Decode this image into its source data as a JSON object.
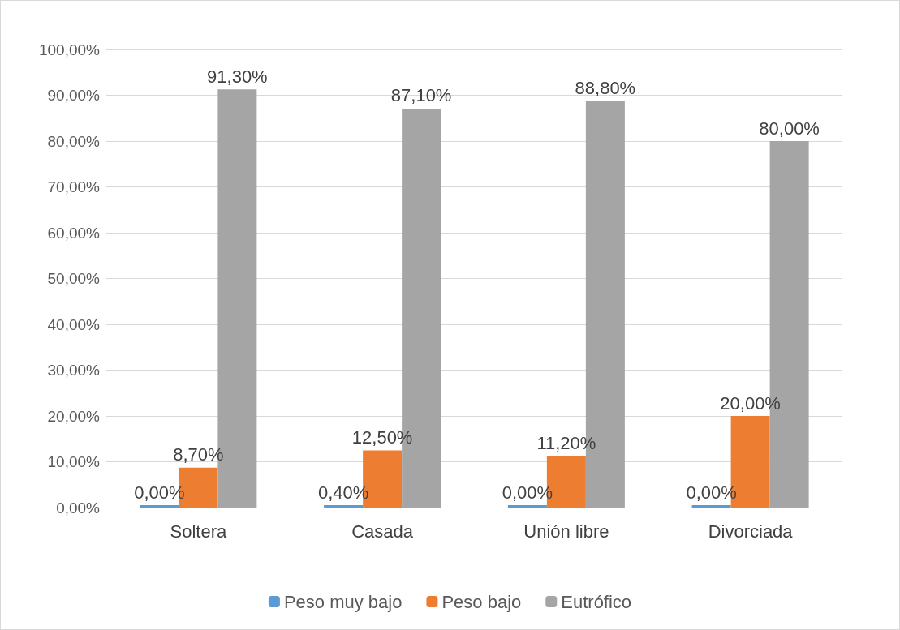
{
  "chart_data": {
    "type": "bar",
    "categories": [
      "Soltera",
      "Casada",
      "Unión libre",
      "Divorciada"
    ],
    "series": [
      {
        "name": "Peso muy bajo",
        "color": "#5b9bd5",
        "values": [
          0,
          0.4,
          0,
          0
        ],
        "value_labels": [
          "0,00%",
          "0,40%",
          "0,00%",
          "0,00%"
        ]
      },
      {
        "name": "Peso bajo",
        "color": "#ed7d31",
        "values": [
          8.7,
          12.5,
          11.2,
          20
        ],
        "value_labels": [
          "8,70%",
          "12,50%",
          "11,20%",
          "20,00%"
        ]
      },
      {
        "name": "Eutrófico",
        "color": "#a5a5a5",
        "values": [
          91.3,
          87.1,
          88.8,
          80
        ],
        "value_labels": [
          "91,30%",
          "87,10%",
          "88,80%",
          "80,00%"
        ]
      }
    ],
    "ylim": [
      0,
      100
    ],
    "yticks": [
      {
        "value": 0,
        "label": "0,00%"
      },
      {
        "value": 10,
        "label": "10,00%"
      },
      {
        "value": 20,
        "label": "20,00%"
      },
      {
        "value": 30,
        "label": "30,00%"
      },
      {
        "value": 40,
        "label": "40,00%"
      },
      {
        "value": 50,
        "label": "50,00%"
      },
      {
        "value": 60,
        "label": "60,00%"
      },
      {
        "value": 70,
        "label": "70,00%"
      },
      {
        "value": 80,
        "label": "80,00%"
      },
      {
        "value": 90,
        "label": "90,00%"
      },
      {
        "value": 100,
        "label": "100,00%"
      }
    ],
    "grid": "y",
    "legend": "bottom"
  }
}
